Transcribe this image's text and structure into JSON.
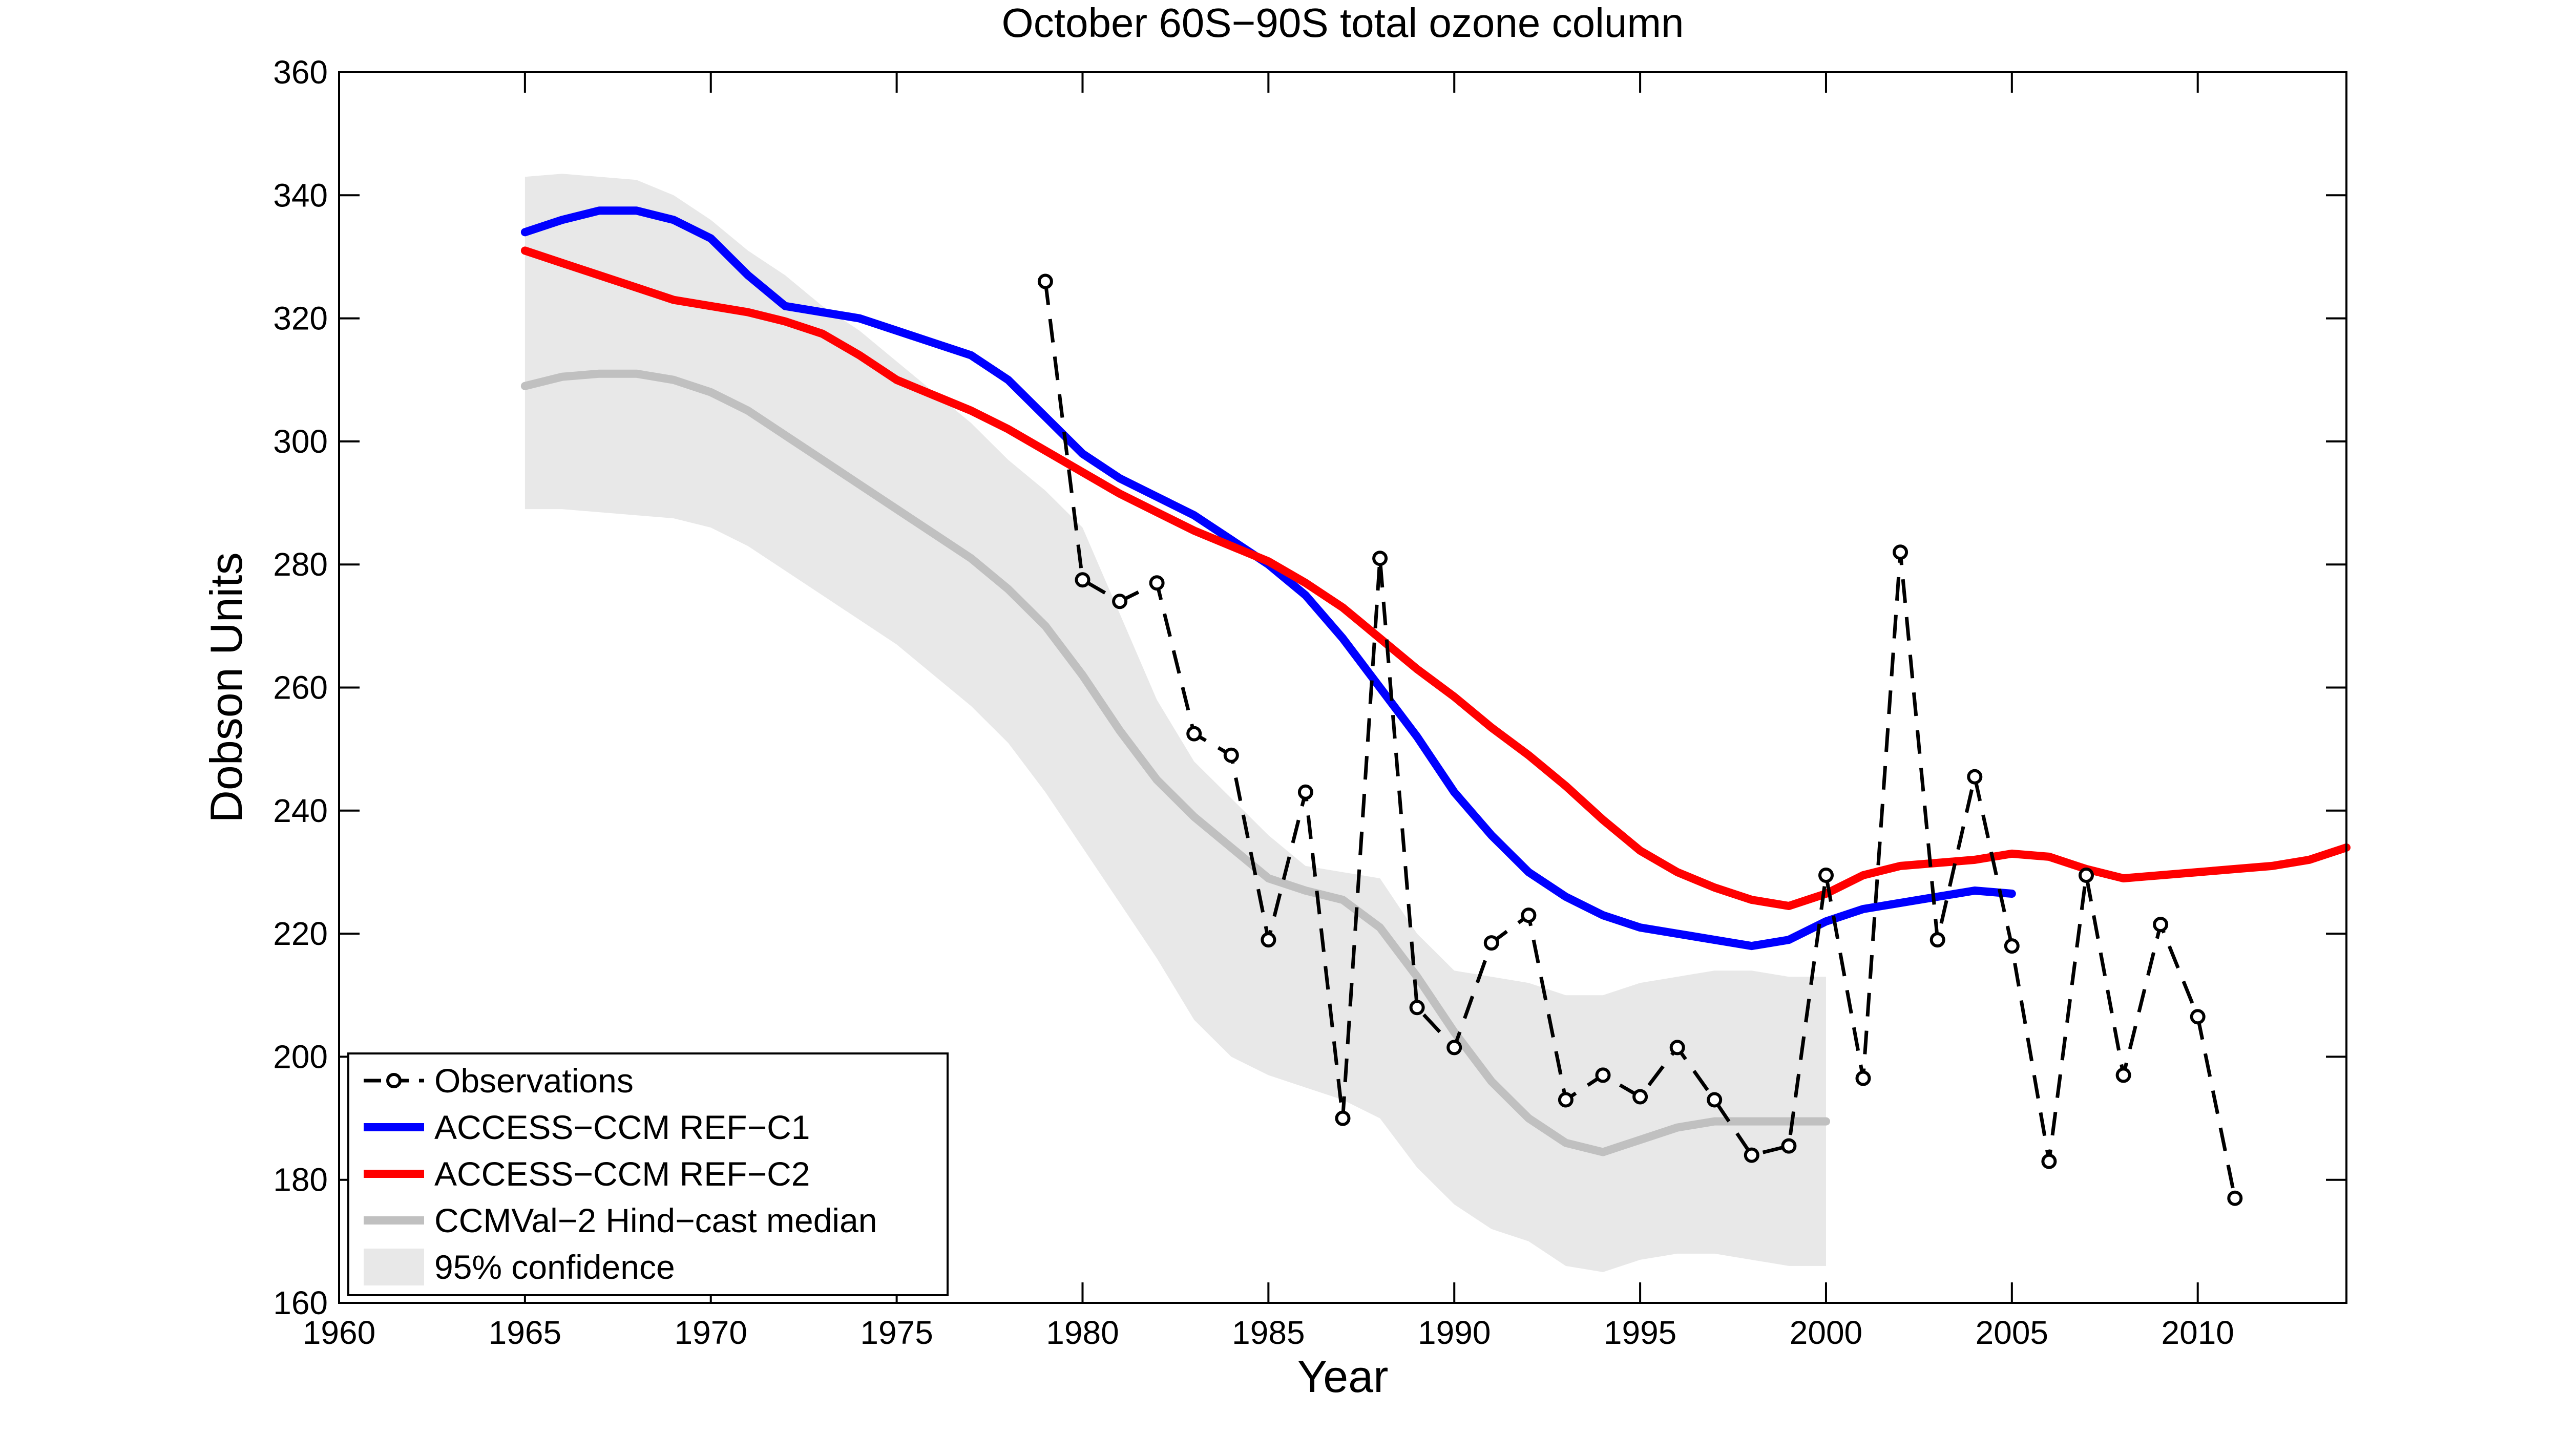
{
  "chart_data": {
    "type": "line",
    "title": "October 60S−90S total ozone column",
    "xlabel": "Year",
    "ylabel": "Dobson Units",
    "xlim": [
      1960,
      2014
    ],
    "ylim": [
      160,
      360
    ],
    "xticks": [
      1960,
      1965,
      1970,
      1975,
      1980,
      1985,
      1990,
      1995,
      2000,
      2005,
      2010
    ],
    "yticks": [
      160,
      180,
      200,
      220,
      240,
      260,
      280,
      300,
      320,
      340,
      360
    ],
    "grid": false,
    "legend_position": "bottom-left",
    "confidence_band": {
      "name": "95% confidence",
      "color": "#e8e8e8",
      "x": [
        1965,
        1966,
        1967,
        1968,
        1969,
        1970,
        1971,
        1972,
        1973,
        1974,
        1975,
        1976,
        1977,
        1978,
        1979,
        1980,
        1981,
        1982,
        1983,
        1984,
        1985,
        1986,
        1987,
        1988,
        1989,
        1990,
        1991,
        1992,
        1993,
        1994,
        1995,
        1996,
        1997,
        1998,
        1999,
        2000
      ],
      "upper": [
        343,
        343.5,
        343,
        342.5,
        340,
        336,
        331,
        327,
        322,
        318,
        313,
        308,
        303,
        297,
        292,
        286,
        272,
        258,
        248,
        242,
        236,
        231,
        230,
        229,
        220,
        214,
        213,
        212,
        210,
        210,
        212,
        213,
        214,
        214,
        213,
        213
      ],
      "lower": [
        289,
        289,
        288.5,
        288,
        287.5,
        286,
        283,
        279,
        275,
        271,
        267,
        262,
        257,
        251,
        243,
        234,
        225,
        216,
        206,
        200,
        197,
        195,
        193,
        190,
        182,
        176,
        172,
        170,
        166,
        165,
        167,
        168,
        168,
        167,
        166,
        166
      ]
    },
    "series": [
      {
        "name": "Observations",
        "color": "#000000",
        "style": "dashed-markers",
        "x": [
          1979,
          1980,
          1981,
          1982,
          1983,
          1984,
          1985,
          1986,
          1987,
          1988,
          1989,
          1990,
          1991,
          1992,
          1993,
          1994,
          1995,
          1996,
          1997,
          1998,
          1999,
          2000,
          2001,
          2002,
          2003,
          2004,
          2005,
          2006,
          2007,
          2008,
          2009,
          2010,
          2011
        ],
        "y": [
          326,
          277.5,
          274,
          277,
          252.5,
          249,
          219,
          243,
          190,
          281,
          208,
          201.5,
          218.5,
          223,
          193,
          197,
          193.5,
          201.5,
          193,
          184,
          185.5,
          229.5,
          196.5,
          282,
          219,
          245.5,
          218,
          183,
          229.5,
          197,
          221.5,
          206.5,
          177
        ]
      },
      {
        "name": "ACCESS−CCM REF−C1",
        "color": "#0000ff",
        "style": "solid",
        "x": [
          1965,
          1966,
          1967,
          1968,
          1969,
          1970,
          1971,
          1972,
          1973,
          1974,
          1975,
          1976,
          1977,
          1978,
          1979,
          1980,
          1981,
          1982,
          1983,
          1984,
          1985,
          1986,
          1987,
          1988,
          1989,
          1990,
          1991,
          1992,
          1993,
          1994,
          1995,
          1996,
          1997,
          1998,
          1999,
          2000,
          2001,
          2002,
          2003,
          2004,
          2005
        ],
        "y": [
          334,
          336,
          337.5,
          337.5,
          336,
          333,
          327,
          322,
          321,
          320,
          318,
          316,
          314,
          310,
          304,
          298,
          294,
          291,
          288,
          284,
          280,
          275,
          268,
          260,
          252,
          243,
          236,
          230,
          226,
          223,
          221,
          220,
          219,
          218,
          219,
          222,
          224,
          225,
          226,
          227,
          226.5
        ]
      },
      {
        "name": "ACCESS−CCM REF−C2",
        "color": "#ff0000",
        "style": "solid",
        "x": [
          1965,
          1966,
          1967,
          1968,
          1969,
          1970,
          1971,
          1972,
          1973,
          1974,
          1975,
          1976,
          1977,
          1978,
          1979,
          1980,
          1981,
          1982,
          1983,
          1984,
          1985,
          1986,
          1987,
          1988,
          1989,
          1990,
          1991,
          1992,
          1993,
          1994,
          1995,
          1996,
          1997,
          1998,
          1999,
          2000,
          2001,
          2002,
          2003,
          2004,
          2005,
          2006,
          2007,
          2008,
          2009,
          2010,
          2011,
          2012,
          2013,
          2014
        ],
        "y": [
          331,
          329,
          327,
          325,
          323,
          322,
          321,
          319.5,
          317.5,
          314,
          310,
          307.5,
          305,
          302,
          298.5,
          295,
          291.5,
          288.5,
          285.5,
          283,
          280.5,
          277,
          273,
          268,
          263,
          258.5,
          253.5,
          249,
          244,
          238.5,
          233.5,
          230,
          227.5,
          225.5,
          224.5,
          226.5,
          229.5,
          231,
          231.5,
          232,
          233,
          232.5,
          230.5,
          229,
          229.5,
          230,
          230.5,
          231,
          232,
          234
        ]
      },
      {
        "name": "CCMVal−2 Hind−cast median",
        "color": "#c0c0c0",
        "style": "solid",
        "x": [
          1965,
          1966,
          1967,
          1968,
          1969,
          1970,
          1971,
          1972,
          1973,
          1974,
          1975,
          1976,
          1977,
          1978,
          1979,
          1980,
          1981,
          1982,
          1983,
          1984,
          1985,
          1986,
          1987,
          1988,
          1989,
          1990,
          1991,
          1992,
          1993,
          1994,
          1995,
          1996,
          1997,
          1998,
          1999,
          2000
        ],
        "y": [
          309,
          310.5,
          311,
          311,
          310,
          308,
          305,
          301,
          297,
          293,
          289,
          285,
          281,
          276,
          270,
          262,
          253,
          245,
          239,
          234,
          229,
          227,
          225.5,
          221,
          213,
          204,
          196,
          190,
          186,
          184.5,
          186.5,
          188.5,
          189.5,
          189.5,
          189.5,
          189.5
        ]
      }
    ]
  }
}
